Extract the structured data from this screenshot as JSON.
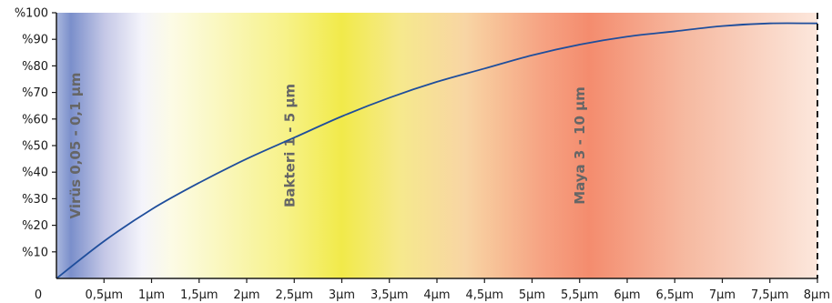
{
  "chart_data": {
    "type": "line",
    "title": "",
    "xlabel": "",
    "ylabel": "",
    "x_unit": "µm",
    "xlim": [
      0,
      8
    ],
    "ylim": [
      0,
      100
    ],
    "x_ticks": [
      {
        "value": 0,
        "label": "0"
      },
      {
        "value": 0.5,
        "label": "0,5µm"
      },
      {
        "value": 1,
        "label": "1µm"
      },
      {
        "value": 1.5,
        "label": "1,5µm"
      },
      {
        "value": 2,
        "label": "2µm"
      },
      {
        "value": 2.5,
        "label": "2,5µm"
      },
      {
        "value": 3,
        "label": "3µm"
      },
      {
        "value": 3.5,
        "label": "3,5µm"
      },
      {
        "value": 4,
        "label": "4µm"
      },
      {
        "value": 4.5,
        "label": "4,5µm"
      },
      {
        "value": 5,
        "label": "5µm"
      },
      {
        "value": 5.5,
        "label": "5,5µm"
      },
      {
        "value": 6,
        "label": "6µm"
      },
      {
        "value": 6.5,
        "label": "6,5µm"
      },
      {
        "value": 7,
        "label": "7µm"
      },
      {
        "value": 7.5,
        "label": "7,5µm"
      },
      {
        "value": 8,
        "label": "8µm"
      }
    ],
    "y_ticks": [
      {
        "value": 10,
        "label": "%10"
      },
      {
        "value": 20,
        "label": "%20"
      },
      {
        "value": 30,
        "label": "%30"
      },
      {
        "value": 40,
        "label": "%40"
      },
      {
        "value": 50,
        "label": "%50"
      },
      {
        "value": 60,
        "label": "%60"
      },
      {
        "value": 70,
        "label": "%70"
      },
      {
        "value": 80,
        "label": "%80"
      },
      {
        "value": 90,
        "label": "%90"
      },
      {
        "value": 100,
        "label": "%100"
      }
    ],
    "series": [
      {
        "color": "#1f4e9c",
        "x": [
          0,
          0.5,
          1,
          1.5,
          2,
          2.5,
          3,
          3.5,
          4,
          4.5,
          5,
          5.5,
          6,
          6.5,
          7,
          7.5,
          8
        ],
        "y": [
          0,
          14,
          26,
          36,
          45,
          53,
          61,
          68,
          74,
          79,
          84,
          88,
          91,
          93,
          95,
          96,
          96
        ]
      }
    ],
    "bands": [
      {
        "label": "Virüs 0,05 - 0,1 µm",
        "x_label": 0.25
      },
      {
        "label": "Bakteri 1 - 5 µm",
        "x_label": 2.5
      },
      {
        "label": "Maya 3 - 10 µm",
        "x_label": 5.55
      }
    ],
    "background_gradient": [
      {
        "x": 0,
        "color": "#aab8de"
      },
      {
        "x": 0.15,
        "color": "#7b8fcb"
      },
      {
        "x": 0.5,
        "color": "#c4c7e6"
      },
      {
        "x": 0.9,
        "color": "#f4f4fb"
      },
      {
        "x": 1.2,
        "color": "#fcfbe6"
      },
      {
        "x": 2.4,
        "color": "#f7f28a"
      },
      {
        "x": 3.0,
        "color": "#f1ea4a"
      },
      {
        "x": 3.6,
        "color": "#f6e98c"
      },
      {
        "x": 4.3,
        "color": "#f8d5a4"
      },
      {
        "x": 5.1,
        "color": "#f6a383"
      },
      {
        "x": 5.6,
        "color": "#f48c6e"
      },
      {
        "x": 6.6,
        "color": "#f6b9a0"
      },
      {
        "x": 8,
        "color": "#fce7dc"
      }
    ],
    "right_border_dashed": true,
    "grid": false,
    "legend": "none"
  }
}
